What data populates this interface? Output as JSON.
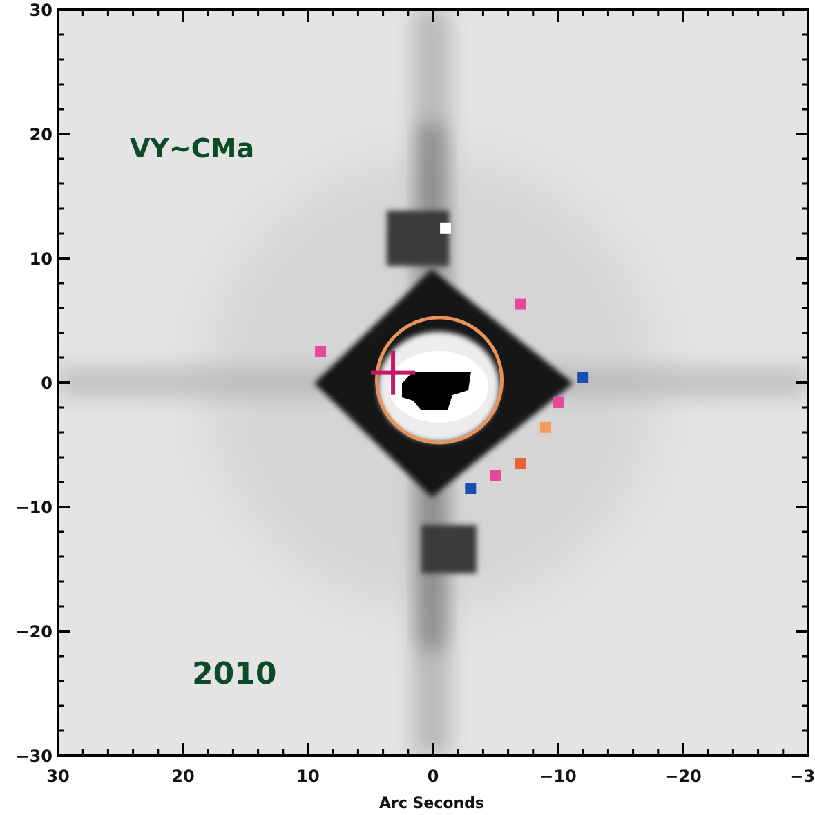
{
  "chart_data": {
    "type": "scatter",
    "title": "",
    "xlabel": "Arc Seconds",
    "ylabel": "",
    "xlim": [
      30,
      -30
    ],
    "ylim": [
      -30,
      30
    ],
    "x_ticks": [
      30,
      20,
      10,
      0,
      -10,
      -20,
      -30
    ],
    "y_ticks": [
      30,
      20,
      10,
      0,
      -10,
      -20,
      -30
    ],
    "x_tick_labels": [
      "30",
      "20",
      "10",
      "0",
      "−10",
      "−20",
      "−30"
    ],
    "y_tick_labels": [
      "30",
      "20",
      "10",
      "0",
      "−10",
      "−20",
      "−30"
    ],
    "grid": false,
    "annotations": {
      "object_name": "VY~CMa",
      "year": "2010"
    },
    "circle": {
      "center": [
        -0.5,
        0.2
      ],
      "radius": 5.0,
      "color": "#e8935a"
    },
    "cross": {
      "x": 3.2,
      "y": 0.8,
      "color": "#c2186b"
    },
    "markers": [
      {
        "x": 9,
        "y": 2.5,
        "color": "#e8479a"
      },
      {
        "x": -7,
        "y": 6.3,
        "color": "#e8479a"
      },
      {
        "x": -12,
        "y": 0.4,
        "color": "#1a4fb0"
      },
      {
        "x": -10,
        "y": -1.6,
        "color": "#e8479a"
      },
      {
        "x": -9,
        "y": -3.6,
        "color": "#f39a5c"
      },
      {
        "x": -7,
        "y": -6.5,
        "color": "#e8653a"
      },
      {
        "x": -5,
        "y": -7.5,
        "color": "#e8479a"
      },
      {
        "x": -3,
        "y": -8.5,
        "color": "#1a4fb0"
      },
      {
        "x": -1,
        "y": 12.4,
        "color": "#ffffff"
      }
    ]
  }
}
